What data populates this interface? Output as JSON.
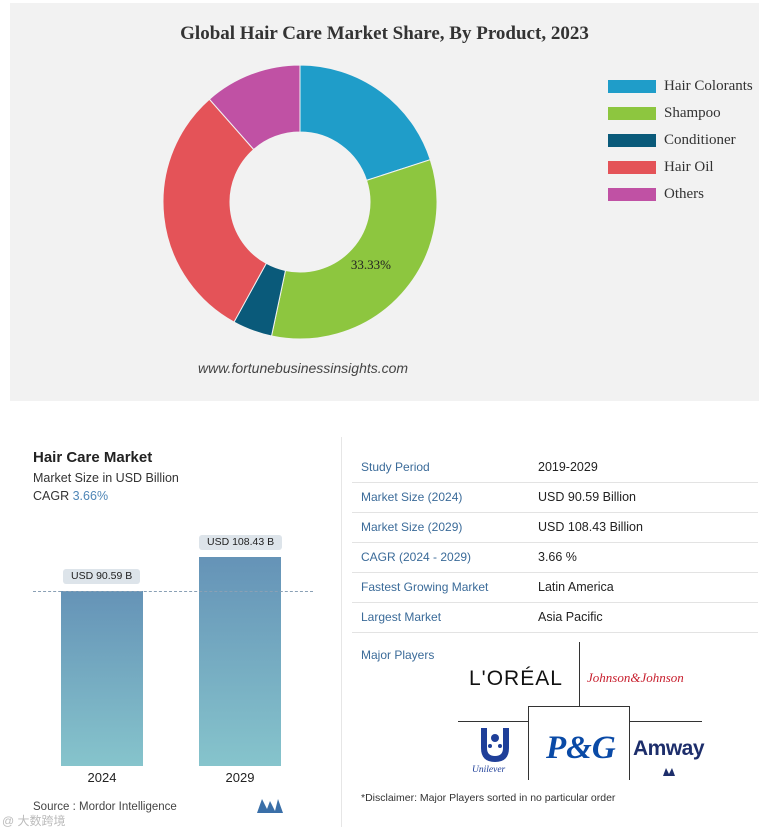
{
  "donut_panel": {
    "watermark": "www.fortunebusinessinsights.com"
  },
  "chart_data": [
    {
      "type": "pie",
      "variant": "donut",
      "title": "Global Hair Care Market Share, By Product, 2023",
      "series": [
        {
          "name": "Hair Colorants",
          "value": 20.0,
          "color": "#1f9dc9"
        },
        {
          "name": "Shampoo",
          "value": 33.33,
          "color": "#8dc63f"
        },
        {
          "name": "Conditioner",
          "value": 4.67,
          "color": "#0a5a7a"
        },
        {
          "name": "Hair Oil",
          "value": 30.5,
          "color": "#e45358"
        },
        {
          "name": "Others",
          "value": 11.5,
          "color": "#c051a4"
        }
      ],
      "data_labels": [
        {
          "series": "Shampoo",
          "text": "33.33%"
        }
      ],
      "legend": "right"
    },
    {
      "type": "bar",
      "title": "Hair Care Market",
      "ylabel": "Market Size in USD Billion",
      "categories": [
        "2024",
        "2029"
      ],
      "values": [
        90.59,
        108.43
      ],
      "data_labels": [
        "USD 90.59 B",
        "USD 108.43 B"
      ],
      "ylim": [
        0,
        115
      ],
      "color_top": "#6593b7",
      "color_bottom": "#86c4cc"
    }
  ],
  "bar_panel": {
    "title": "Hair Care Market",
    "subtitle": "Market Size in USD Billion",
    "cagr_label": "CAGR",
    "cagr_value": "3.66%",
    "source": "Source : Mordor Intelligence"
  },
  "info_table": [
    {
      "key": "Study Period",
      "value": "2019-2029"
    },
    {
      "key": "Market Size (2024)",
      "value": "USD 90.59 Billion"
    },
    {
      "key": "Market Size (2029)",
      "value": "USD 108.43 Billion"
    },
    {
      "key": "CAGR (2024 - 2029)",
      "value": "3.66 %"
    },
    {
      "key": "Fastest Growing Market",
      "value": "Latin America"
    },
    {
      "key": "Largest Market",
      "value": "Asia Pacific"
    }
  ],
  "major_players": {
    "label": "Major Players",
    "logos": [
      "L'ORÉAL",
      "Johnson&Johnson",
      "Unilever",
      "P&G",
      "Amway"
    ],
    "disclaimer": "*Disclaimer: Major Players sorted in no particular order"
  },
  "corner_watermark": "@ 大数跨境"
}
